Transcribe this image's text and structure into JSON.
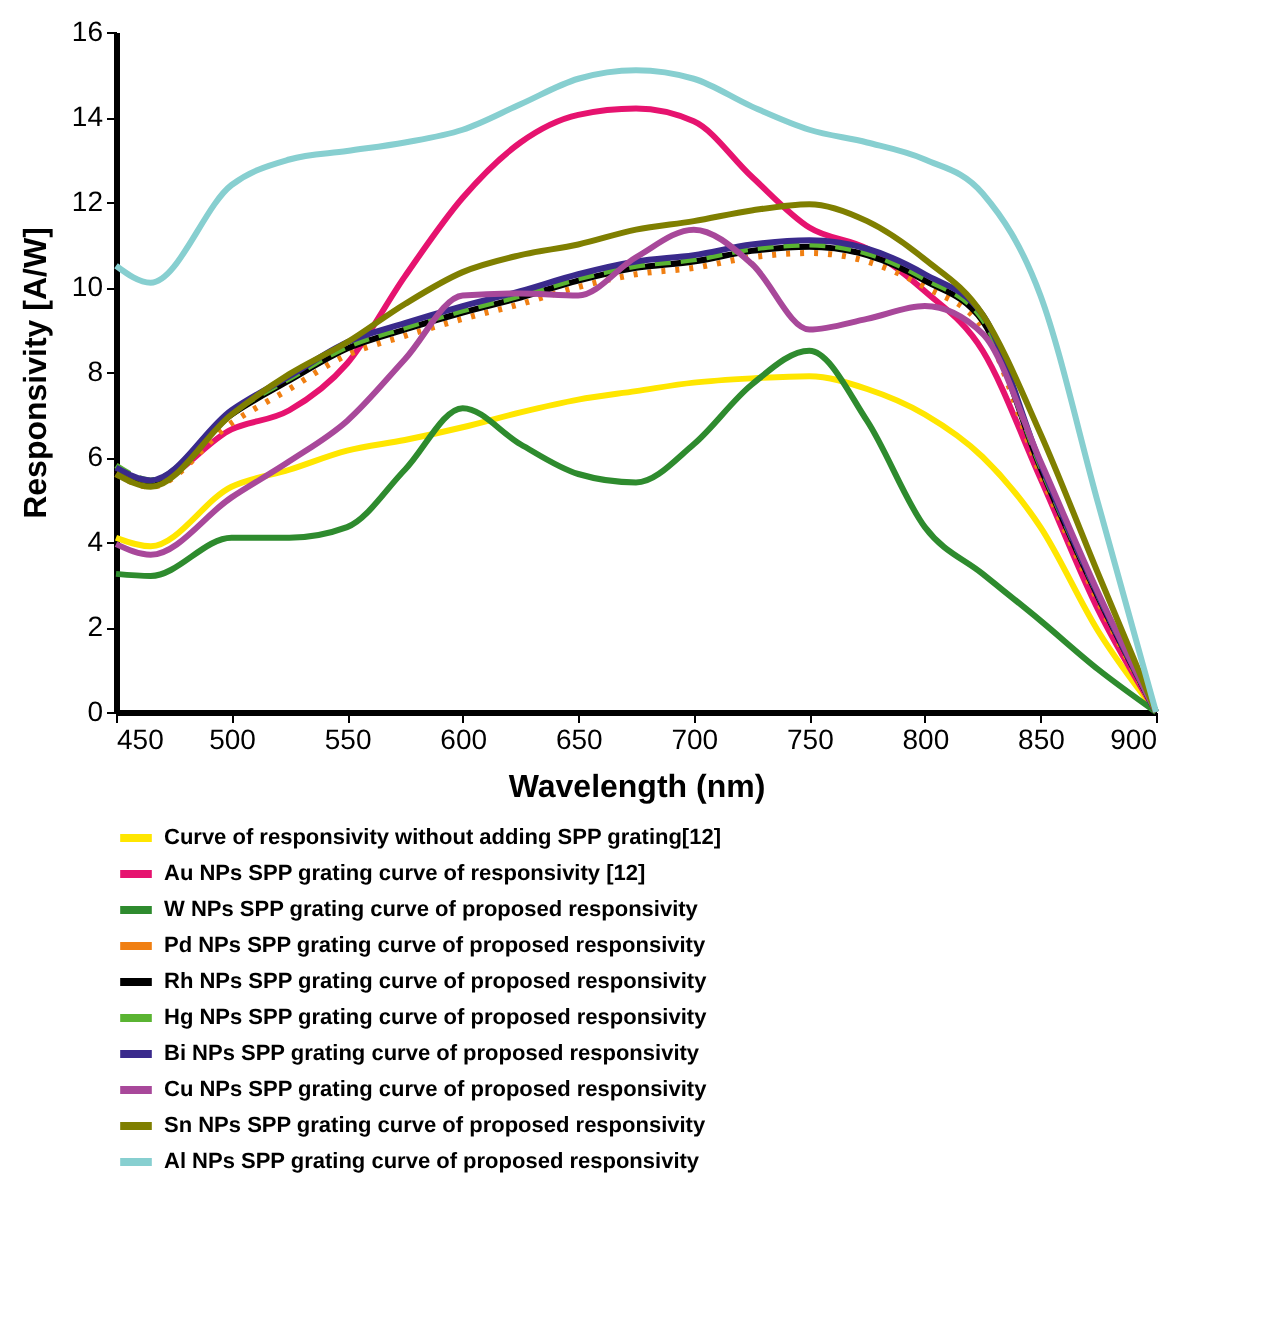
{
  "chart_data": {
    "type": "line",
    "xlabel": "Wavelength (nm)",
    "ylabel": "Responsivity [A/W]",
    "x": [
      450,
      465,
      500,
      525,
      550,
      575,
      600,
      625,
      650,
      675,
      700,
      725,
      750,
      775,
      800,
      825,
      850,
      875,
      900
    ],
    "xlim": [
      450,
      900
    ],
    "xticks": [
      450,
      500,
      550,
      600,
      650,
      700,
      750,
      800,
      850,
      900
    ],
    "ylim": [
      0,
      16
    ],
    "yticks": [
      0,
      2,
      4,
      6,
      8,
      10,
      12,
      14,
      16
    ],
    "grid": false,
    "legend": "bottom",
    "marker": "none",
    "line_style": "solid",
    "series": [
      {
        "name": "Curve of responsivity without adding SPP grating[12]",
        "color": "#ffe600",
        "values": [
          4.1,
          3.9,
          5.3,
          5.7,
          6.15,
          6.4,
          6.7,
          7.05,
          7.35,
          7.55,
          7.75,
          7.85,
          7.9,
          7.6,
          7.0,
          6.0,
          4.35,
          1.9,
          0
        ]
      },
      {
        "name": "Au NPs SPP grating curve of responsivity [12]",
        "color": "#e6136f",
        "values": [
          5.7,
          5.4,
          6.65,
          7.1,
          8.2,
          10.25,
          12.1,
          13.4,
          14.05,
          14.2,
          13.9,
          12.6,
          11.4,
          10.9,
          9.9,
          8.5,
          5.5,
          2.4,
          0
        ]
      },
      {
        "name": "W NPs SPP grating curve of proposed responsivity",
        "color": "#2e8b2e",
        "values": [
          3.25,
          3.2,
          4.1,
          4.1,
          4.35,
          5.7,
          7.15,
          6.3,
          5.6,
          5.4,
          6.3,
          7.7,
          8.5,
          6.85,
          4.35,
          3.25,
          2.15,
          1.0,
          0
        ]
      },
      {
        "name": "Pd NPs SPP grating curve of proposed responsivity",
        "color": "#f07f12",
        "line_style": "dotted",
        "values": [
          5.6,
          5.3,
          6.8,
          7.6,
          8.4,
          8.85,
          9.25,
          9.6,
          10.0,
          10.3,
          10.45,
          10.7,
          10.8,
          10.6,
          10.0,
          9.05,
          5.6,
          2.6,
          0
        ]
      },
      {
        "name": "Rh NPs SPP grating curve of proposed responsivity",
        "color": "#000000",
        "values": [
          5.7,
          5.4,
          7.0,
          7.8,
          8.55,
          9.0,
          9.4,
          9.75,
          10.15,
          10.45,
          10.6,
          10.85,
          10.95,
          10.75,
          10.15,
          9.2,
          5.75,
          2.7,
          0
        ]
      },
      {
        "name": "Hg  NPs SPP grating curve of proposed responsivity",
        "color": "#5ab432",
        "line_style": "dashed",
        "values": [
          5.8,
          5.45,
          7.05,
          7.85,
          8.6,
          9.05,
          9.45,
          9.8,
          10.2,
          10.5,
          10.65,
          10.9,
          11.0,
          10.8,
          10.2,
          9.25,
          5.8,
          2.75,
          0
        ]
      },
      {
        "name": "Bi NPs SPP grating curve of proposed responsivity",
        "color": "#3a2a8c",
        "values": [
          5.75,
          5.45,
          7.1,
          7.9,
          8.7,
          9.15,
          9.55,
          9.9,
          10.3,
          10.6,
          10.75,
          11.0,
          11.1,
          10.9,
          10.3,
          9.35,
          5.85,
          2.75,
          0
        ]
      },
      {
        "name": "Cu NPs SPP grating curve of proposed responsivity",
        "color": "#a8489a",
        "values": [
          3.95,
          3.7,
          5.05,
          5.9,
          6.85,
          8.3,
          9.8,
          9.85,
          9.8,
          10.7,
          11.35,
          10.55,
          9.0,
          9.25,
          9.55,
          8.9,
          5.9,
          2.8,
          0
        ]
      },
      {
        "name": "Sn NPs SPP grating curve of proposed responsivity",
        "color": "#7f7f00",
        "values": [
          5.6,
          5.3,
          7.0,
          7.95,
          8.7,
          9.6,
          10.35,
          10.75,
          11.0,
          11.35,
          11.55,
          11.8,
          11.95,
          11.55,
          10.65,
          9.35,
          6.55,
          3.25,
          0
        ]
      },
      {
        "name": "Al NPs SPP grating curve of proposed responsivity",
        "color": "#87cfd0",
        "values": [
          10.5,
          10.1,
          12.4,
          13.0,
          13.2,
          13.4,
          13.7,
          14.3,
          14.9,
          15.1,
          14.9,
          14.25,
          13.7,
          13.4,
          13.0,
          12.2,
          9.8,
          4.9,
          0
        ]
      }
    ]
  }
}
